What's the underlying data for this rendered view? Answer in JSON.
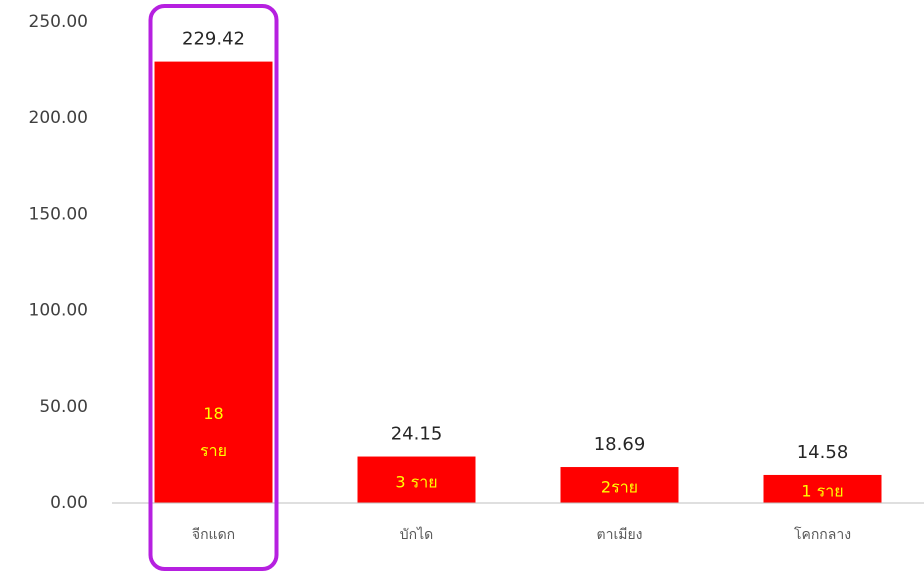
{
  "chart_data": {
    "type": "bar",
    "categories": [
      "จีกแดก",
      "บักได",
      "ตาเมียง",
      "โคกกลาง"
    ],
    "values": [
      229.42,
      24.15,
      18.69,
      14.58
    ],
    "inner_labels": [
      [
        "18",
        "ราย"
      ],
      [
        "3 ราย"
      ],
      [
        "2ราย"
      ],
      [
        "1 ราย"
      ]
    ],
    "color": "#ff0000",
    "inner_label_color": "#ffff00",
    "highlight_index": 0,
    "highlight_color": "#b620e0",
    "ylim": [
      0,
      250
    ],
    "yticks": [
      {
        "value": 0,
        "label": "0.00"
      },
      {
        "value": 50,
        "label": "50.00"
      },
      {
        "value": 100,
        "label": "100.00"
      },
      {
        "value": 150,
        "label": "150.00"
      },
      {
        "value": 200,
        "label": "200.00"
      },
      {
        "value": 250,
        "label": "250.00"
      }
    ],
    "grid": false
  }
}
